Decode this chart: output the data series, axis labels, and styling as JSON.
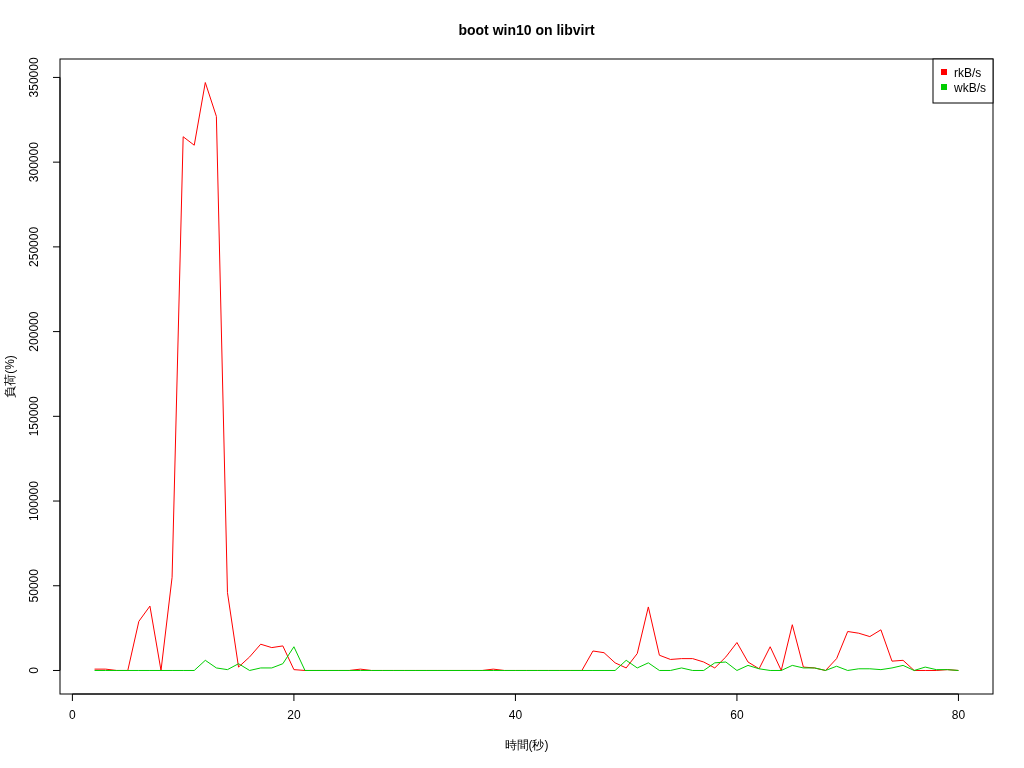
{
  "chart_data": {
    "type": "line",
    "title": "boot win10 on libvirt",
    "xlabel": "時間(秒)",
    "ylabel": "負荷(%)",
    "x": [
      2,
      3,
      4,
      5,
      6,
      7,
      8,
      9,
      10,
      11,
      12,
      13,
      14,
      15,
      16,
      17,
      18,
      19,
      20,
      21,
      22,
      23,
      24,
      25,
      26,
      27,
      28,
      29,
      30,
      31,
      32,
      33,
      34,
      35,
      36,
      37,
      38,
      39,
      40,
      41,
      42,
      43,
      44,
      45,
      46,
      47,
      48,
      49,
      50,
      51,
      52,
      53,
      54,
      55,
      56,
      57,
      58,
      59,
      60,
      61,
      62,
      63,
      64,
      65,
      66,
      67,
      68,
      69,
      70,
      71,
      72,
      73,
      74,
      75,
      76,
      77,
      78,
      79,
      80
    ],
    "series": [
      {
        "name": "rkB/s",
        "color": "#ff0000",
        "values": [
          800,
          800,
          0,
          0,
          29000,
          38000,
          0,
          55000,
          315000,
          310000,
          347000,
          327000,
          46000,
          2000,
          8000,
          15500,
          13500,
          14500,
          500,
          0,
          0,
          0,
          0,
          0,
          800,
          0,
          0,
          0,
          0,
          0,
          0,
          0,
          0,
          0,
          0,
          0,
          800,
          0,
          0,
          0,
          0,
          0,
          0,
          0,
          0,
          11500,
          10500,
          4500,
          1500,
          10000,
          37500,
          9000,
          6500,
          7000,
          7000,
          5000,
          1500,
          8000,
          16500,
          5000,
          1000,
          14000,
          0,
          27000,
          2000,
          1500,
          0,
          7000,
          23000,
          22000,
          20000,
          24000,
          5500,
          6000,
          0,
          0,
          0,
          500,
          0
        ]
      },
      {
        "name": "wkB/s",
        "color": "#00cd00",
        "values": [
          0,
          0,
          0,
          0,
          0,
          0,
          0,
          0,
          0,
          0,
          6000,
          1500,
          500,
          4000,
          0,
          1500,
          1500,
          4000,
          14000,
          0,
          0,
          0,
          0,
          0,
          0,
          0,
          0,
          0,
          0,
          0,
          0,
          0,
          0,
          0,
          0,
          0,
          0,
          0,
          0,
          0,
          0,
          0,
          0,
          0,
          0,
          0,
          0,
          0,
          6000,
          1500,
          4500,
          0,
          0,
          1500,
          0,
          0,
          4500,
          5000,
          0,
          3000,
          1000,
          0,
          0,
          3000,
          1500,
          1500,
          0,
          2500,
          0,
          1000,
          1000,
          500,
          1500,
          3000,
          0,
          2000,
          500,
          500,
          0
        ]
      }
    ],
    "xlim": [
      -1.12,
      83.12
    ],
    "ylim": [
      -13880,
      360880
    ],
    "xticks": [
      0,
      20,
      40,
      60,
      80
    ],
    "yticks": [
      0,
      50000,
      100000,
      150000,
      200000,
      250000,
      300000,
      350000
    ],
    "legend": "top right",
    "grid": false,
    "marker": "none",
    "line_style": "solid"
  }
}
